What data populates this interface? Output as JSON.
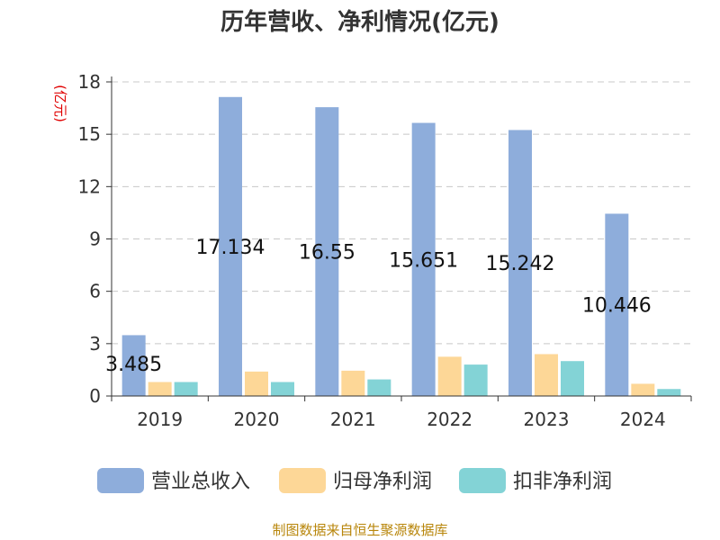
{
  "chart_data": {
    "type": "bar",
    "title": "历年营收、净利情况(亿元)",
    "ylabel": "(亿元)",
    "categories": [
      "2019",
      "2020",
      "2021",
      "2022",
      "2023",
      "2024"
    ],
    "ylim": [
      0,
      18
    ],
    "yticks": [
      0,
      3,
      6,
      9,
      12,
      15,
      18
    ],
    "grid": true,
    "legend_position": "bottom",
    "series": [
      {
        "name": "营业总收入",
        "color": "#8eaddb",
        "values": [
          3.485,
          17.134,
          16.55,
          15.651,
          15.242,
          10.446
        ],
        "labels": [
          "3.485",
          "17.134",
          "16.55",
          "15.651",
          "15.242",
          "10.446"
        ]
      },
      {
        "name": "归母净利润",
        "color": "#fdd797",
        "values": [
          0.8,
          1.4,
          1.45,
          2.25,
          2.4,
          0.7
        ]
      },
      {
        "name": "扣非净利润",
        "color": "#83d3d6",
        "values": [
          0.8,
          0.8,
          0.95,
          1.8,
          2.0,
          0.4
        ]
      }
    ],
    "source": "制图数据来自恒生聚源数据库"
  }
}
